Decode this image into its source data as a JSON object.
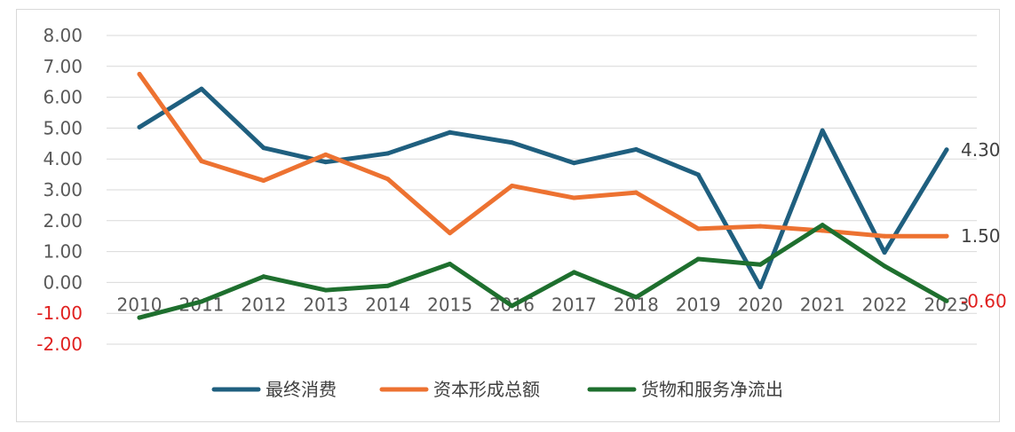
{
  "chart_data": {
    "type": "line",
    "title": "",
    "xlabel": "",
    "ylabel": "",
    "categories": [
      "2010",
      "2011",
      "2012",
      "2013",
      "2014",
      "2015",
      "2016",
      "2017",
      "2018",
      "2019",
      "2020",
      "2021",
      "2022",
      "2023"
    ],
    "ylim": [
      -2,
      8
    ],
    "yticks": [
      "8.00",
      "7.00",
      "6.00",
      "5.00",
      "4.00",
      "3.00",
      "2.00",
      "1.00",
      "0.00",
      "-1.00",
      "-2.00"
    ],
    "ytick_values": [
      8,
      7,
      6,
      5,
      4,
      3,
      2,
      1,
      0,
      -1,
      -2
    ],
    "grid": true,
    "legend_position": "bottom",
    "series": [
      {
        "name": "最终消费",
        "color": "#1f5f7f",
        "values": [
          5.03,
          6.27,
          4.36,
          3.9,
          4.18,
          4.86,
          4.53,
          3.87,
          4.31,
          3.49,
          -0.15,
          4.92,
          0.97,
          4.3
        ],
        "end_label": "4.30",
        "end_label_color": "#404040"
      },
      {
        "name": "资本形成总额",
        "color": "#ed7231",
        "values": [
          6.75,
          3.93,
          3.3,
          4.14,
          3.35,
          1.6,
          3.13,
          2.74,
          2.91,
          1.74,
          1.82,
          1.68,
          1.5,
          1.5
        ],
        "end_label": "1.50",
        "end_label_color": "#404040"
      },
      {
        "name": "货物和服务净流出",
        "color": "#1e6f2e",
        "values": [
          -1.14,
          -0.62,
          0.19,
          -0.25,
          -0.11,
          0.6,
          -0.76,
          0.33,
          -0.48,
          0.76,
          0.58,
          1.86,
          0.53,
          -0.6
        ],
        "end_label": "-0.60",
        "end_label_color": "#e0201f"
      }
    ]
  }
}
